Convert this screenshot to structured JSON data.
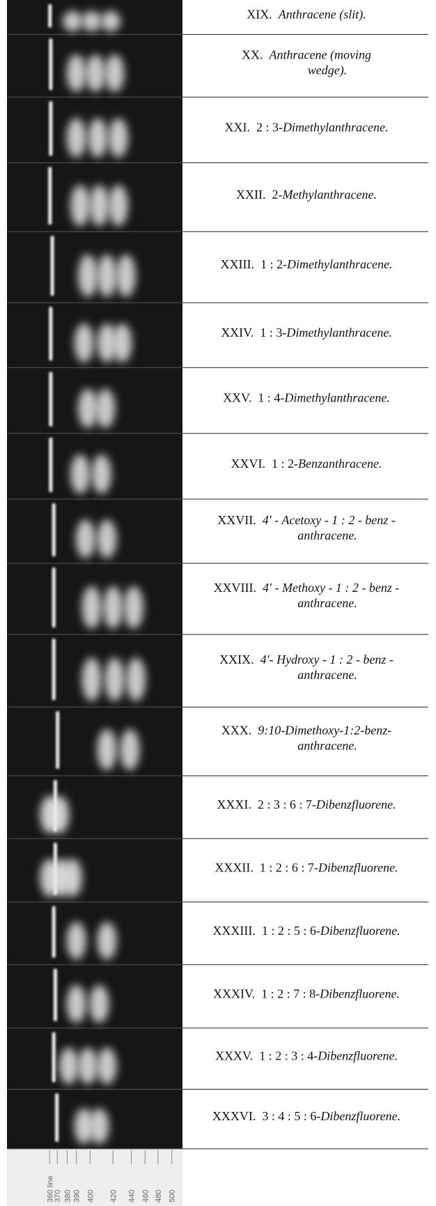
{
  "plates": [
    {
      "numeral": "XIX.",
      "name": "Anthracene (slit)."
    },
    {
      "numeral": "XX.",
      "name": "Anthracene (moving",
      "name2": "wedge)."
    },
    {
      "numeral": "XXI.",
      "prefix": "2 : 3-",
      "name": "Dimethylanthracene."
    },
    {
      "numeral": "XXII.",
      "prefix": "2-",
      "name": "Methylanthracene."
    },
    {
      "numeral": "XXIII.",
      "prefix": "1 : 2-",
      "name": "Dimethylanthracene."
    },
    {
      "numeral": "XXIV.",
      "prefix": "1 : 3-",
      "name": "Dimethylanthracene."
    },
    {
      "numeral": "XXV.",
      "prefix": "1 : 4-",
      "name": "Dimethylanthracene."
    },
    {
      "numeral": "XXVI.",
      "prefix": "1 : 2-",
      "name": "Benzanthracene."
    },
    {
      "numeral": "XXVII.",
      "name": "4′ - Acetoxy - 1 : 2 - benz -",
      "name2": "anthracene."
    },
    {
      "numeral": "XXVIII.",
      "name": "4′ - Methoxy - 1 : 2 - benz -",
      "name2": "anthracene."
    },
    {
      "numeral": "XXIX.",
      "name": "4′- Hydroxy - 1 : 2 - benz -",
      "name2": "anthracene."
    },
    {
      "numeral": "XXX.",
      "name": "9:10-Dimethoxy-1:2-benz-",
      "name2": "anthracene."
    },
    {
      "numeral": "XXXI.",
      "prefix": "2 : 3 : 6 : 7-",
      "name": "Dibenzfluorene."
    },
    {
      "numeral": "XXXII.",
      "prefix": "1 : 2 : 6 : 7-",
      "name": "Dibenzfluorene."
    },
    {
      "numeral": "XXXIII.",
      "prefix": "1 : 2 : 5 : 6-",
      "name": "Dibenzfluorene."
    },
    {
      "numeral": "XXXIV.",
      "prefix": "1 : 2 : 7 : 8-",
      "name": "Dibenzfluorene."
    },
    {
      "numeral": "XXXV.",
      "prefix": "1 : 2 : 3 : 4-",
      "name": "Dibenzfluorene."
    },
    {
      "numeral": "XXXVI.",
      "prefix": "3 : 4 : 5 : 6-",
      "name": "Dibenzfluorene."
    }
  ],
  "scale": [
    "360 line",
    "370",
    "380",
    "390",
    "400",
    "420",
    "440",
    "460",
    "480",
    "500"
  ]
}
